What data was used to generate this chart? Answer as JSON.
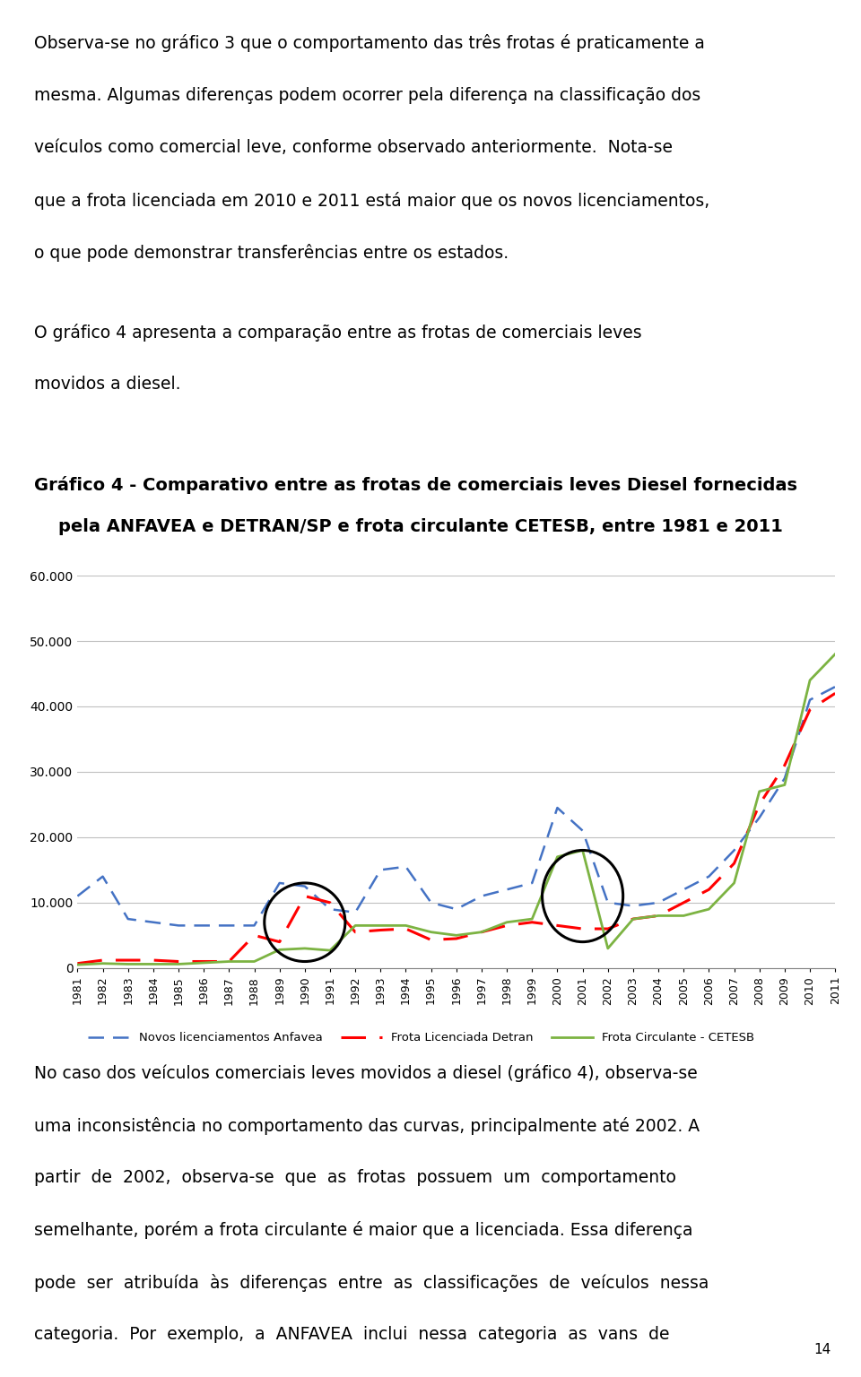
{
  "title_line1": "Gráfico 4 - Comparativo entre as frotas de comerciais leves Diesel fornecidas",
  "title_line2": "    pela ANFAVEA e DETRAN/SP e frota circulante CETESB, entre 1981 e 2011",
  "years": [
    1981,
    1982,
    1983,
    1984,
    1985,
    1986,
    1987,
    1988,
    1989,
    1990,
    1991,
    1992,
    1993,
    1994,
    1995,
    1996,
    1997,
    1998,
    1999,
    2000,
    2001,
    2002,
    2003,
    2004,
    2005,
    2006,
    2007,
    2008,
    2009,
    2010,
    2011
  ],
  "novos_licenciamentos": [
    11000,
    14000,
    7500,
    7000,
    6500,
    6500,
    6500,
    6500,
    13000,
    12500,
    9000,
    8500,
    15000,
    15500,
    10000,
    9000,
    11000,
    12000,
    13000,
    24500,
    21000,
    10000,
    9500,
    10000,
    12000,
    14000,
    18000,
    23000,
    29000,
    41000,
    43000
  ],
  "frota_licenciada": [
    700,
    1200,
    1200,
    1200,
    1000,
    1000,
    1000,
    5000,
    4000,
    11000,
    10000,
    5500,
    5800,
    6000,
    4300,
    4500,
    5500,
    6500,
    7000,
    6500,
    6000,
    6000,
    7500,
    8000,
    10000,
    12000,
    16000,
    25000,
    31000,
    39500,
    42000
  ],
  "frota_circulante": [
    500,
    700,
    600,
    600,
    600,
    800,
    1000,
    1000,
    2800,
    3000,
    2700,
    6500,
    6500,
    6500,
    5500,
    5000,
    5500,
    7000,
    7500,
    17000,
    18000,
    3000,
    7500,
    8000,
    8000,
    9000,
    13000,
    27000,
    28000,
    44000,
    48000
  ],
  "color_novos": "#4472C4",
  "color_licenciada": "#FF0000",
  "color_circulante": "#7CB342",
  "ylim": [
    0,
    60000
  ],
  "yticks": [
    0,
    10000,
    20000,
    30000,
    40000,
    50000,
    60000
  ],
  "ytick_labels": [
    "0",
    "10.000",
    "20.000",
    "30.000",
    "40.000",
    "50.000",
    "60.000"
  ],
  "legend_novos": "Novos licenciamentos Anfavea",
  "legend_licenciada": "Frota Licenciada Detran",
  "legend_circulante": "Frota Circulante - CETESB",
  "para1_lines": [
    "Observa-se no gráfico 3 que o comportamento das três frotas é praticamente a",
    "mesma. Algumas diferenças podem ocorrer pela diferença na classificação dos",
    "veículos como comercial leve, conforme observado anteriormente.  Nota-se",
    "que a frota licenciada em 2010 e 2011 está maior que os novos licenciamentos,",
    "o que pode demonstrar transferências entre os estados."
  ],
  "para2_lines": [
    "O gráfico 4 apresenta a comparação entre as frotas de comerciais leves",
    "movidos a diesel."
  ],
  "para3_lines": [
    "No caso dos veículos comerciais leves movidos a diesel (gráfico 4), observa-se",
    "uma inconsistência no comportamento das curvas, principalmente até 2002. A",
    "partir  de  2002,  observa-se  que  as  frotas  possuem  um  comportamento",
    "semelhante, porém a frota circulante é maior que a licenciada. Essa diferença",
    "pode  ser  atribuída  às  diferenças  entre  as  classificações  de  veículos  nessa",
    "categoria.  Por  exemplo,  a  ANFAVEA  inclui  nessa  categoria  as  vans  de"
  ],
  "page_number": "14"
}
